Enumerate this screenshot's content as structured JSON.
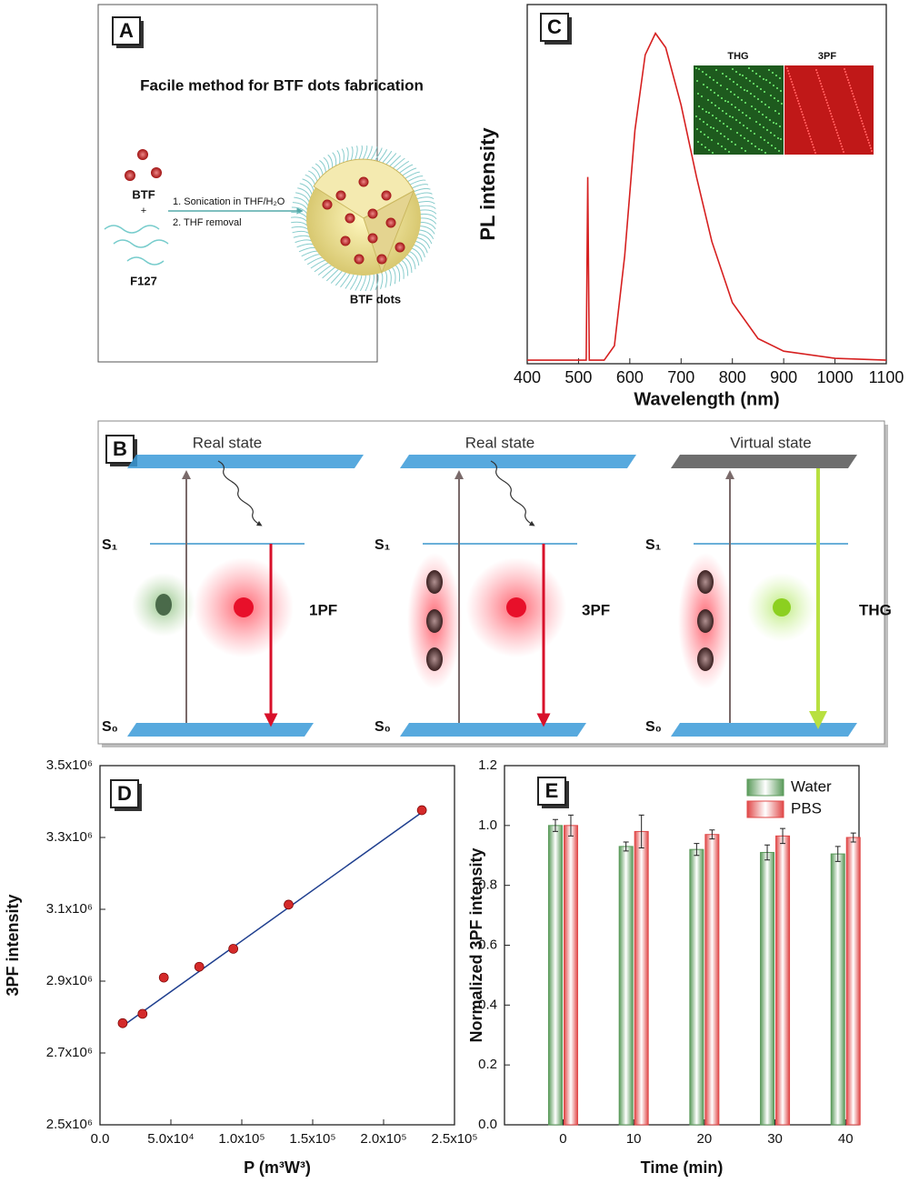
{
  "panel_a": {
    "letter": "A",
    "title": "Facile method for BTF dots fabrication",
    "btf": "BTF",
    "plus": "+",
    "step1": "1. Sonication in THF/H₂O",
    "step2": "2. THF removal",
    "f127": "F127",
    "product": "BTF dots"
  },
  "panel_b": {
    "letter": "B",
    "states": [
      "Real state",
      "Real state",
      "Virtual state"
    ],
    "s1": [
      "S₁",
      "S₁",
      "S₁"
    ],
    "s0": [
      "S₀",
      "S₀",
      "S₀"
    ],
    "processes": [
      "1PF",
      "3PF",
      "THG"
    ]
  },
  "chart_data": [
    {
      "type": "line",
      "letter": "C",
      "ylabel": "PL intensity",
      "xlabel": "Wavelength (nm)",
      "inset_labels": [
        "THG",
        "3PF"
      ],
      "color": "#d62020",
      "x": [
        400,
        510,
        515,
        518,
        521,
        550,
        570,
        590,
        610,
        630,
        650,
        670,
        700,
        730,
        760,
        800,
        850,
        900,
        1000,
        1100
      ],
      "values": [
        0.01,
        0.01,
        0.01,
        0.52,
        0.01,
        0.01,
        0.05,
        0.3,
        0.65,
        0.86,
        0.92,
        0.88,
        0.72,
        0.52,
        0.34,
        0.17,
        0.07,
        0.035,
        0.015,
        0.01
      ],
      "xlim": [
        400,
        1100
      ],
      "ylim": [
        0,
        1
      ],
      "xticks": [
        400,
        500,
        600,
        700,
        800,
        900,
        1000,
        1100
      ]
    },
    {
      "type": "scatter",
      "letter": "D",
      "ylabel": "3PF intensity",
      "xlabel": "P (m³W³)",
      "color": "#d42a2a",
      "fit_color": "#1f3f8f",
      "x": [
        16000,
        30000,
        45000,
        70000,
        94000,
        133000,
        227000
      ],
      "values": [
        2783000,
        2809000,
        2910000,
        2940000,
        2990000,
        3113000,
        3376000
      ],
      "fit": {
        "x": [
          16000,
          227000
        ],
        "values": [
          2775000,
          3370000
        ]
      },
      "xlim": [
        0,
        250000
      ],
      "ylim": [
        2500000,
        3500000
      ],
      "xticks": [
        {
          "value": 0,
          "label": "0.0"
        },
        {
          "value": 50000,
          "label": "5.0x10⁴"
        },
        {
          "value": 100000,
          "label": "1.0x10⁵"
        },
        {
          "value": 150000,
          "label": "1.5x10⁵"
        },
        {
          "value": 200000,
          "label": "2.0x10⁵"
        },
        {
          "value": 250000,
          "label": "2.5x10⁵"
        }
      ],
      "yticks": [
        {
          "value": 2500000,
          "label": "2.5x10⁶"
        },
        {
          "value": 2700000,
          "label": "2.7x10⁶"
        },
        {
          "value": 2900000,
          "label": "2.9x10⁶"
        },
        {
          "value": 3100000,
          "label": "3.1x10⁶"
        },
        {
          "value": 3300000,
          "label": "3.3x10⁶"
        },
        {
          "value": 3500000,
          "label": "3.5x10⁶"
        }
      ]
    },
    {
      "type": "bar",
      "letter": "E",
      "ylabel": "Normalized 3PF intensity",
      "xlabel": "Time (min)",
      "legend": "upper right",
      "x": [
        0,
        10,
        20,
        30,
        40
      ],
      "series": [
        {
          "name": "Water",
          "color": "#5a9a5a",
          "values": [
            1.0,
            0.93,
            0.92,
            0.91,
            0.905
          ],
          "errors": [
            0.02,
            0.015,
            0.02,
            0.025,
            0.025
          ]
        },
        {
          "name": "PBS",
          "color": "#e04848",
          "values": [
            1.0,
            0.98,
            0.97,
            0.965,
            0.96
          ],
          "errors": [
            0.035,
            0.055,
            0.015,
            0.025,
            0.015
          ]
        }
      ],
      "xlim": [
        -8.3,
        41.9
      ],
      "ylim": [
        0,
        1.2
      ],
      "xticks": [
        0,
        10,
        20,
        30,
        40
      ],
      "yticks": [
        {
          "value": 0,
          "label": "0.0"
        },
        0.2,
        0.4,
        0.6,
        0.8,
        {
          "value": 1,
          "label": "1.0"
        },
        1.2
      ]
    }
  ]
}
